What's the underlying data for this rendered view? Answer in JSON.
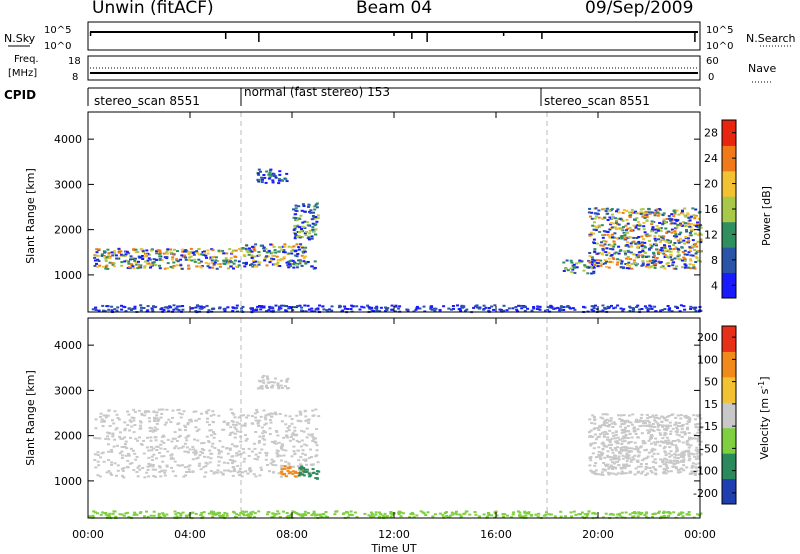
{
  "header": {
    "station": "Unwin (fitACF)",
    "beam": "Beam 04",
    "date": "09/Sep/2009"
  },
  "noise_panel": {
    "left_label": "N.Sky",
    "right_label": "N.Search",
    "ticks_left": [
      "10^5",
      "10^0"
    ],
    "ticks_right": [
      "10^5",
      "10^0"
    ]
  },
  "freq_panel": {
    "left_label_line1": "Freq.",
    "left_label_line2": "[MHz]",
    "ticks_left": [
      "18",
      "8"
    ],
    "right_label": "Nave",
    "ticks_right": [
      "60",
      "0"
    ]
  },
  "cpid_panel": {
    "label": "CPID",
    "segments": [
      {
        "label": "stereo_scan 8551",
        "start_h": 0,
        "end_h": 6
      },
      {
        "label": "normal (fast stereo) 153",
        "start_h": 6,
        "end_h": 18
      },
      {
        "label": "stereo_scan 8551",
        "start_h": 18,
        "end_h": 24
      }
    ]
  },
  "x_axis": {
    "label": "Time UT",
    "ticks": [
      "00:00",
      "04:00",
      "08:00",
      "12:00",
      "16:00",
      "20:00",
      "00:00"
    ]
  },
  "chart_data": [
    {
      "type": "heatmap",
      "title": "",
      "ylabel": "Slant Range [km]",
      "xlabel": "",
      "ylim": [
        180,
        4600
      ],
      "xlim_hours": [
        0,
        24
      ],
      "yticks": [
        1000,
        2000,
        3000,
        4000
      ],
      "colorbar": {
        "label": "Power [dB]",
        "ticks": [
          4,
          8,
          12,
          16,
          20,
          24,
          28
        ],
        "colors": [
          "#1a1aff",
          "#2a54a8",
          "#2f8f5f",
          "#a8c84a",
          "#f2c232",
          "#f07a1a",
          "#e8250f"
        ]
      },
      "regions": [
        {
          "name": "band-a",
          "t": [
            0.2,
            6.0
          ],
          "r": [
            1150,
            1600
          ],
          "level": 5
        },
        {
          "name": "band-b",
          "t": [
            6.0,
            8.5
          ],
          "r": [
            1200,
            1700
          ],
          "level": 5
        },
        {
          "name": "rising-b",
          "t": [
            8.0,
            9.0
          ],
          "r": [
            1800,
            2600
          ],
          "level": 3
        },
        {
          "name": "patch-08",
          "t": [
            7.8,
            8.9
          ],
          "r": [
            1150,
            1350
          ],
          "level": 3
        },
        {
          "name": "patch-07",
          "t": [
            6.6,
            7.8
          ],
          "r": [
            3050,
            3350
          ],
          "level": 2
        },
        {
          "name": "patch-20",
          "t": [
            18.6,
            19.8
          ],
          "r": [
            1050,
            1350
          ],
          "level": 3
        },
        {
          "name": "band-c",
          "t": [
            19.6,
            24.0
          ],
          "r": [
            1150,
            2500
          ],
          "level": 5
        },
        {
          "name": "ground",
          "t": [
            0.0,
            24.0
          ],
          "r": [
            200,
            350
          ],
          "level": 1
        }
      ]
    },
    {
      "type": "heatmap",
      "title": "",
      "ylabel": "Slant Range [km]",
      "xlabel": "Time UT",
      "ylim": [
        180,
        4600
      ],
      "xlim_hours": [
        0,
        24
      ],
      "yticks": [
        1000,
        2000,
        3000,
        4000
      ],
      "colorbar": {
        "label": "Velocity [m s^-1]",
        "ticks": [
          "200",
          "100",
          "50",
          "15",
          "-15",
          "-50",
          "-100",
          "-200"
        ],
        "colors": [
          "#1f3fb0",
          "#2a8a5c",
          "#7fd040",
          "#c8c8c8",
          "#f2c232",
          "#f08a1a",
          "#e83018"
        ]
      },
      "regions": [
        {
          "name": "grey-band-a",
          "t": [
            0.2,
            9.0
          ],
          "r": [
            1100,
            2600
          ],
          "color": "#c8c8c8"
        },
        {
          "name": "orange-patch",
          "t": [
            7.5,
            8.4
          ],
          "r": [
            1100,
            1350
          ],
          "color": "#f08a1a"
        },
        {
          "name": "green-patch",
          "t": [
            8.2,
            9.0
          ],
          "r": [
            1050,
            1350
          ],
          "color": "#2a8a5c"
        },
        {
          "name": "grey-patch-07",
          "t": [
            6.6,
            7.8
          ],
          "r": [
            3050,
            3350
          ],
          "color": "#c8c8c8"
        },
        {
          "name": "grey-band-c",
          "t": [
            19.6,
            24.0
          ],
          "r": [
            1150,
            2500
          ],
          "color": "#c8c8c8"
        },
        {
          "name": "ground-green",
          "t": [
            0.0,
            24.0
          ],
          "r": [
            200,
            350
          ],
          "color": "#7fd040"
        }
      ]
    }
  ]
}
